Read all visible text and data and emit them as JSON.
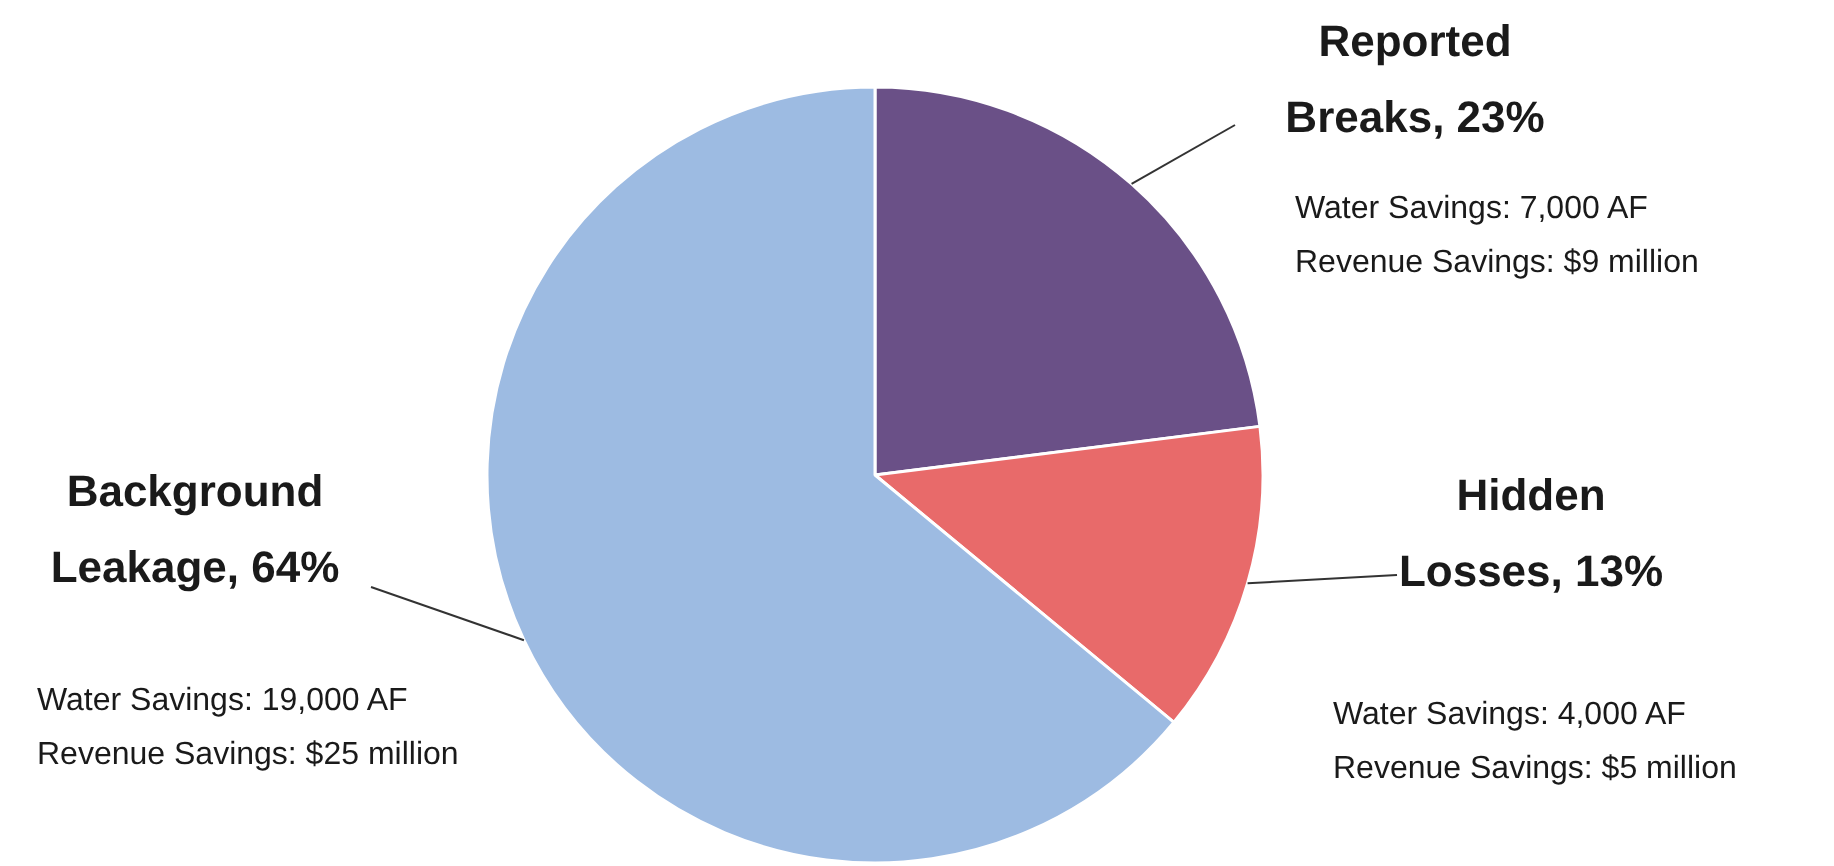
{
  "chart_data": {
    "type": "pie",
    "categories": [
      "Reported Breaks",
      "Hidden Losses",
      "Background Leakage"
    ],
    "values": [
      23,
      13,
      64
    ],
    "value_labels": [
      "23%",
      "13%",
      "64%"
    ],
    "colors": [
      "#6a5087",
      "#e86a6a",
      "#9dbbe2"
    ],
    "annotations": [
      "Water Savings: 7,000 AF",
      "Revenue Savings: $9 million",
      "Water Savings: 4,000 AF",
      "Revenue Savings: $5 million",
      "Water Savings: 19,000 AF",
      "Revenue Savings: $25 million"
    ]
  }
}
